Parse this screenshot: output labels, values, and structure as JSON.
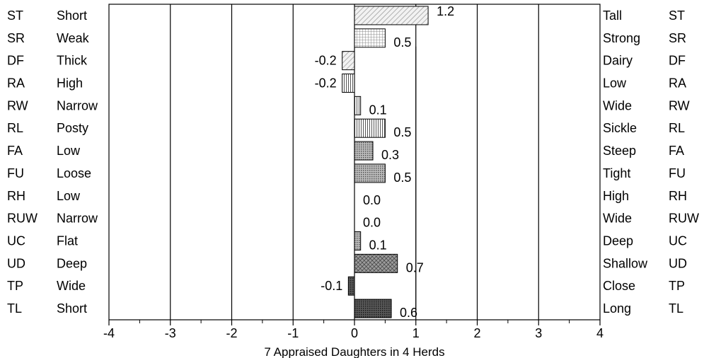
{
  "chart_data": {
    "type": "bar",
    "orientation": "horizontal",
    "xlabel": "7 Appraised Daughters in 4 Herds",
    "xlim": [
      -4,
      4
    ],
    "xticks": [
      "-4",
      "-3",
      "-2",
      "-1",
      "0",
      "1",
      "2",
      "3",
      "4"
    ],
    "grid": "vertical at integer ticks",
    "traits": [
      {
        "code": "ST",
        "left": "Short",
        "right": "Tall",
        "value": 1.2,
        "value_label": "1.2"
      },
      {
        "code": "SR",
        "left": "Weak",
        "right": "Strong",
        "value": 0.5,
        "value_label": "0.5"
      },
      {
        "code": "DF",
        "left": "Thick",
        "right": "Dairy",
        "value": -0.2,
        "value_label": "-0.2"
      },
      {
        "code": "RA",
        "left": "High",
        "right": "Low",
        "value": -0.2,
        "value_label": "-0.2"
      },
      {
        "code": "RW",
        "left": "Narrow",
        "right": "Wide",
        "value": 0.1,
        "value_label": "0.1"
      },
      {
        "code": "RL",
        "left": "Posty",
        "right": "Sickle",
        "value": 0.5,
        "value_label": "0.5"
      },
      {
        "code": "FA",
        "left": "Low",
        "right": "Steep",
        "value": 0.3,
        "value_label": "0.3"
      },
      {
        "code": "FU",
        "left": "Loose",
        "right": "Tight",
        "value": 0.5,
        "value_label": "0.5"
      },
      {
        "code": "RH",
        "left": "Low",
        "right": "High",
        "value": 0.0,
        "value_label": "0.0"
      },
      {
        "code": "RUW",
        "left": "Narrow",
        "right": "Wide",
        "value": 0.0,
        "value_label": "0.0"
      },
      {
        "code": "UC",
        "left": "Flat",
        "right": "Deep",
        "value": 0.1,
        "value_label": "0.1"
      },
      {
        "code": "UD",
        "left": "Deep",
        "right": "Shallow",
        "value": 0.7,
        "value_label": "0.7"
      },
      {
        "code": "TP",
        "left": "Wide",
        "right": "Close",
        "value": -0.1,
        "value_label": "-0.1"
      },
      {
        "code": "TL",
        "left": "Short",
        "right": "Long",
        "value": 0.6,
        "value_label": "0.6"
      }
    ],
    "fill_patterns": [
      "diag-light",
      "grid-light",
      "diag-light",
      "vert-lines",
      "vert-lines",
      "vert-lines",
      "dots",
      "dots",
      "none",
      "none",
      "dots",
      "cross",
      "dark",
      "dark"
    ]
  }
}
